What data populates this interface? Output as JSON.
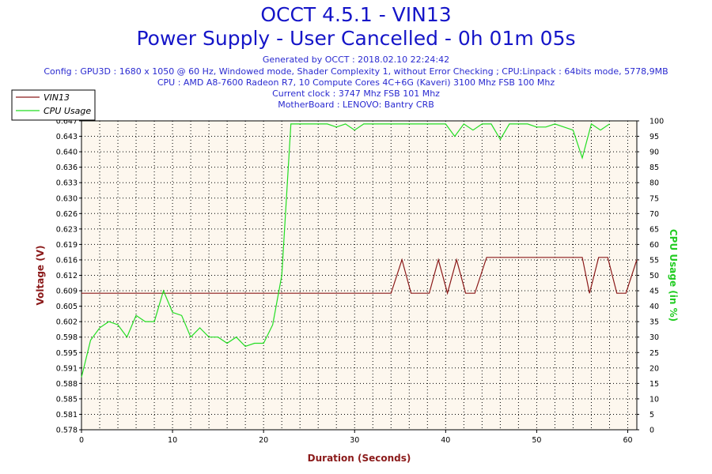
{
  "header": {
    "title": "OCCT 4.5.1 - VIN13",
    "subtitle": "Power Supply - User Cancelled - 0h 01m 05s",
    "generated": "Generated by OCCT : 2018.02.10 22:24:42",
    "config": "Config : GPU3D : 1680 x 1050 @ 60 Hz, Windowed mode, Shader Complexity 1, without Error Checking ; CPU:Linpack : 64bits mode, 5778,9MB",
    "cpu": "CPU : AMD A8-7600 Radeon R7, 10 Compute Cores 4C+6G (Kaveri) 3100 Mhz FSB 100 Mhz",
    "clock": "Current clock : 3747 Mhz FSB 101 Mhz",
    "motherboard": "MotherBoard : LENOVO: Bantry CRB"
  },
  "colors": {
    "background": "#ffffff",
    "plot_background": "#fdf7ee",
    "title_blue": "#1515c8",
    "info_blue": "#2a2ad0",
    "vin13": "#8b1a1a",
    "cpu_usage": "#22dd22",
    "left_axis_title": "#8b1a1a",
    "right_axis_title": "#22cc22",
    "x_axis_title": "#8b1a1a"
  },
  "chart_data": {
    "type": "line",
    "title": "OCCT 4.5.1 - VIN13",
    "subtitle": "Power Supply - User Cancelled - 0h 01m 05s",
    "xlabel": "Duration (Seconds)",
    "ylabel": "Voltage (V)",
    "y2label": "CPU Usage (in %)",
    "xlim": [
      0,
      61
    ],
    "ylim": [
      0.578,
      0.647
    ],
    "y2lim": [
      0,
      100
    ],
    "x_ticks": [
      0,
      10,
      20,
      30,
      40,
      50,
      60
    ],
    "y_ticks": [
      "0.578",
      "0.581",
      "0.585",
      "0.588",
      "0.591",
      "0.595",
      "0.598",
      "0.602",
      "0.605",
      "0.609",
      "0.612",
      "0.616",
      "0.619",
      "0.623",
      "0.626",
      "0.630",
      "0.633",
      "0.636",
      "0.640",
      "0.643",
      "0.647"
    ],
    "y2_ticks": [
      "0",
      "5",
      "10",
      "15",
      "20",
      "25",
      "30",
      "35",
      "40",
      "45",
      "50",
      "55",
      "60",
      "65",
      "70",
      "75",
      "80",
      "85",
      "90",
      "95",
      "100"
    ],
    "grid": true,
    "legend_position": "top-left",
    "series": [
      {
        "name": "VIN13",
        "axis": "left",
        "points": [
          [
            0,
            0.6085
          ],
          [
            34,
            0.6085
          ],
          [
            35.2,
            0.616
          ],
          [
            36.2,
            0.6085
          ],
          [
            37.5,
            0.6085
          ],
          [
            38.2,
            0.6085
          ],
          [
            39.2,
            0.616
          ],
          [
            40.2,
            0.6085
          ],
          [
            41.2,
            0.616
          ],
          [
            42.2,
            0.6085
          ],
          [
            43.2,
            0.6085
          ],
          [
            44.5,
            0.6165
          ],
          [
            46,
            0.6165
          ],
          [
            55,
            0.6165
          ],
          [
            55.8,
            0.6085
          ],
          [
            56.8,
            0.6165
          ],
          [
            57.8,
            0.6165
          ],
          [
            58.8,
            0.6085
          ],
          [
            59.8,
            0.6085
          ],
          [
            61,
            0.616
          ]
        ]
      },
      {
        "name": "CPU Usage",
        "axis": "right",
        "points": [
          [
            0,
            17
          ],
          [
            1,
            29
          ],
          [
            2,
            33
          ],
          [
            3,
            35
          ],
          [
            4,
            34
          ],
          [
            5,
            30
          ],
          [
            6,
            37
          ],
          [
            7,
            35
          ],
          [
            8,
            35
          ],
          [
            9,
            45
          ],
          [
            10,
            38
          ],
          [
            11,
            37
          ],
          [
            12,
            30
          ],
          [
            13,
            33
          ],
          [
            14,
            30
          ],
          [
            15,
            30
          ],
          [
            16,
            28
          ],
          [
            17,
            30
          ],
          [
            18,
            27
          ],
          [
            19,
            28
          ],
          [
            20,
            28
          ],
          [
            21,
            34
          ],
          [
            22,
            50
          ],
          [
            23,
            99
          ],
          [
            24,
            99
          ],
          [
            25,
            99
          ],
          [
            26,
            99
          ],
          [
            27,
            99
          ],
          [
            28,
            98
          ],
          [
            29,
            99
          ],
          [
            30,
            97
          ],
          [
            31,
            99
          ],
          [
            32,
            99
          ],
          [
            33,
            99
          ],
          [
            34,
            99
          ],
          [
            35,
            99
          ],
          [
            36,
            99
          ],
          [
            37,
            99
          ],
          [
            38,
            99
          ],
          [
            39,
            99
          ],
          [
            40,
            99
          ],
          [
            41,
            95
          ],
          [
            42,
            99
          ],
          [
            43,
            97
          ],
          [
            44,
            99
          ],
          [
            45,
            99
          ],
          [
            46,
            94
          ],
          [
            47,
            99
          ],
          [
            48,
            99
          ],
          [
            49,
            99
          ],
          [
            50,
            98
          ],
          [
            51,
            98
          ],
          [
            52,
            99
          ],
          [
            53,
            98
          ],
          [
            54,
            97
          ],
          [
            55,
            88
          ],
          [
            56,
            99
          ],
          [
            57,
            97
          ],
          [
            58,
            99
          ]
        ]
      }
    ]
  }
}
